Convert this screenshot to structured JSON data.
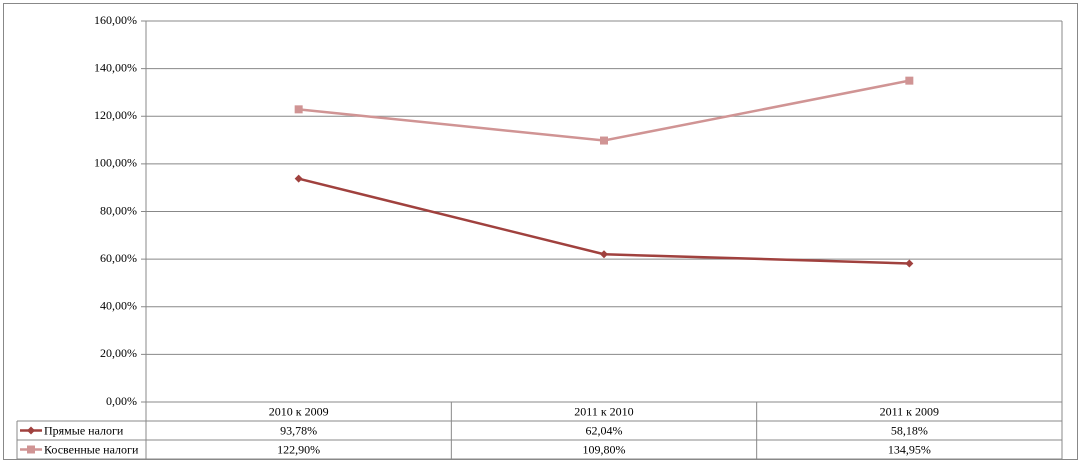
{
  "chart_data": {
    "type": "line",
    "categories": [
      "2010 к 2009",
      "2011 к 2010",
      "2011 к 2009"
    ],
    "series": [
      {
        "name": "Прямые налоги",
        "color": "#a0413e",
        "marker": "diamond",
        "values": [
          93.78,
          62.04,
          58.18
        ],
        "value_labels": [
          "93,78%",
          "62,04%",
          "58,18%"
        ]
      },
      {
        "name": "Косвенные налоги",
        "color": "#d09494",
        "marker": "square",
        "values": [
          122.9,
          109.8,
          134.95
        ],
        "value_labels": [
          "122,90%",
          "109,80%",
          "134,95%"
        ]
      }
    ],
    "ylim": [
      0,
      160
    ],
    "yticks": [
      {
        "value": 0,
        "label": "0,00%"
      },
      {
        "value": 20,
        "label": "20,00%"
      },
      {
        "value": 40,
        "label": "40,00%"
      },
      {
        "value": 60,
        "label": "60,00%"
      },
      {
        "value": 80,
        "label": "80,00%"
      },
      {
        "value": 100,
        "label": "100,00%"
      },
      {
        "value": 120,
        "label": "120,00%"
      },
      {
        "value": 140,
        "label": "140,00%"
      },
      {
        "value": 160,
        "label": "160,00%"
      }
    ],
    "grid": true,
    "data_table": true
  }
}
